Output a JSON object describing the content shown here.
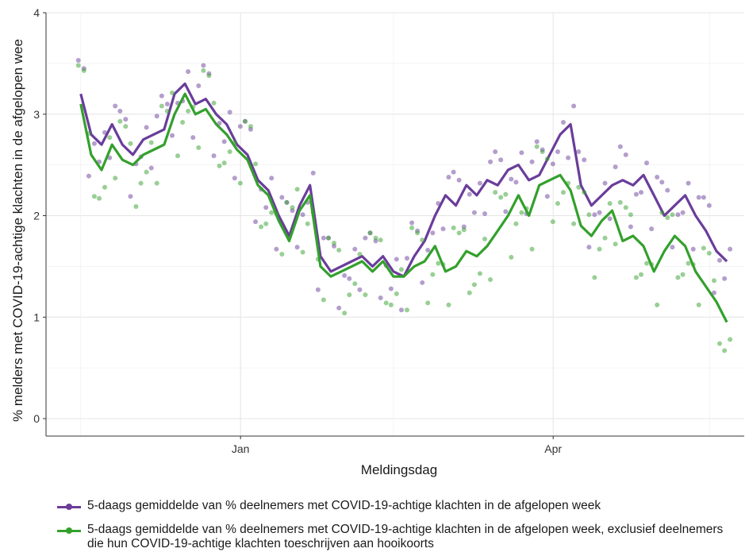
{
  "chart_data": {
    "type": "line",
    "title": "",
    "xlabel": "Meldingsdag",
    "ylabel": "% melders met COVID-19-achtige klachten in de afgelopen wee",
    "x_ticks": [
      "Jan",
      "Apr"
    ],
    "y_ticks": [
      "0",
      "1",
      "2",
      "3",
      "4"
    ],
    "ylim": [
      0,
      4
    ],
    "xlim": [
      "2020-11-06",
      "2021-05-26"
    ],
    "grid": true,
    "legend_position": "bottom",
    "x": [
      "2020-11-16",
      "2020-11-19",
      "2020-11-22",
      "2020-11-25",
      "2020-11-28",
      "2020-12-01",
      "2020-12-04",
      "2020-12-07",
      "2020-12-10",
      "2020-12-13",
      "2020-12-16",
      "2020-12-19",
      "2020-12-22",
      "2020-12-25",
      "2020-12-28",
      "2020-12-31",
      "2021-01-03",
      "2021-01-06",
      "2021-01-09",
      "2021-01-12",
      "2021-01-15",
      "2021-01-18",
      "2021-01-21",
      "2021-01-24",
      "2021-01-27",
      "2021-01-30",
      "2021-02-02",
      "2021-02-05",
      "2021-02-08",
      "2021-02-11",
      "2021-02-14",
      "2021-02-17",
      "2021-02-20",
      "2021-02-23",
      "2021-02-26",
      "2021-03-01",
      "2021-03-04",
      "2021-03-07",
      "2021-03-10",
      "2021-03-13",
      "2021-03-16",
      "2021-03-19",
      "2021-03-22",
      "2021-03-25",
      "2021-03-28",
      "2021-03-31",
      "2021-04-03",
      "2021-04-06",
      "2021-04-09",
      "2021-04-12",
      "2021-04-15",
      "2021-04-18",
      "2021-04-21",
      "2021-04-24",
      "2021-04-27",
      "2021-04-30",
      "2021-05-03",
      "2021-05-06",
      "2021-05-09",
      "2021-05-12",
      "2021-05-15",
      "2021-05-18",
      "2021-05-21"
    ],
    "series": [
      {
        "name": "5-daags gemiddelde van % deelnemers met COVID-19-achtige klachten in de afgelopen week",
        "color": "#6a3d9a",
        "values": [
          3.2,
          2.8,
          2.7,
          2.9,
          2.7,
          2.6,
          2.75,
          2.8,
          2.85,
          3.2,
          3.3,
          3.1,
          3.15,
          3.0,
          2.9,
          2.7,
          2.6,
          2.35,
          2.25,
          2.0,
          1.8,
          2.1,
          2.3,
          1.6,
          1.45,
          1.5,
          1.55,
          1.6,
          1.5,
          1.6,
          1.45,
          1.4,
          1.6,
          1.75,
          2.0,
          2.2,
          2.1,
          2.3,
          2.2,
          2.35,
          2.3,
          2.45,
          2.5,
          2.35,
          2.4,
          2.6,
          2.8,
          2.9,
          2.3,
          2.1,
          2.2,
          2.3,
          2.35,
          2.3,
          2.4,
          2.2,
          2.0,
          2.1,
          2.2,
          2.0,
          1.85,
          1.65,
          1.55
        ]
      },
      {
        "name": "5-daags gemiddelde van % deelnemers met COVID-19-achtige klachten in de afgelopen week, exclusief deelnemers die hun COVID-19-achtige klachten toeschrijven aan hooikoorts",
        "color": "#33a02c",
        "values": [
          3.1,
          2.6,
          2.45,
          2.7,
          2.55,
          2.5,
          2.6,
          2.65,
          2.7,
          3.0,
          3.2,
          3.0,
          3.05,
          2.9,
          2.8,
          2.65,
          2.55,
          2.3,
          2.2,
          1.95,
          1.75,
          2.05,
          2.2,
          1.5,
          1.4,
          1.45,
          1.5,
          1.55,
          1.45,
          1.55,
          1.4,
          1.4,
          1.5,
          1.55,
          1.7,
          1.45,
          1.5,
          1.65,
          1.6,
          1.7,
          1.85,
          2.0,
          2.2,
          2.0,
          2.3,
          2.35,
          2.4,
          2.25,
          1.9,
          1.8,
          1.95,
          2.05,
          1.75,
          1.8,
          1.7,
          1.45,
          1.65,
          1.8,
          1.7,
          1.45,
          1.3,
          1.15,
          0.95
        ]
      }
    ]
  }
}
